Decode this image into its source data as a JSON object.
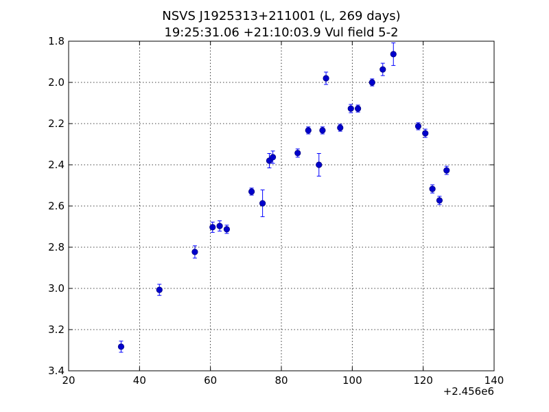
{
  "chart_data": {
    "type": "scatter",
    "title_line1": "NSVS J1925313+211001 (L, 269 days)",
    "title_line2": "19:25:31.06 +21:10:03.9 Vul field 5-2",
    "x_offset_label": "+2.456e6",
    "xlim": [
      20,
      140
    ],
    "ylim": [
      1.8,
      3.4
    ],
    "y_inverted": true,
    "x_ticks": [
      20,
      40,
      60,
      80,
      100,
      120,
      140
    ],
    "y_ticks": [
      1.8,
      2.0,
      2.2,
      2.4,
      2.6,
      2.8,
      3.0,
      3.2,
      3.4
    ],
    "grid": true,
    "marker_color": "#0000cc",
    "points": [
      {
        "x": 34.8,
        "y": 3.283,
        "err": 0.027
      },
      {
        "x": 45.6,
        "y": 3.007,
        "err": 0.027
      },
      {
        "x": 55.6,
        "y": 2.823,
        "err": 0.03
      },
      {
        "x": 60.6,
        "y": 2.703,
        "err": 0.025
      },
      {
        "x": 62.6,
        "y": 2.697,
        "err": 0.025
      },
      {
        "x": 64.6,
        "y": 2.713,
        "err": 0.02
      },
      {
        "x": 71.6,
        "y": 2.53,
        "err": 0.017
      },
      {
        "x": 74.7,
        "y": 2.587,
        "err": 0.065
      },
      {
        "x": 76.6,
        "y": 2.38,
        "err": 0.035
      },
      {
        "x": 77.6,
        "y": 2.363,
        "err": 0.03
      },
      {
        "x": 84.6,
        "y": 2.343,
        "err": 0.02
      },
      {
        "x": 87.6,
        "y": 2.233,
        "err": 0.017
      },
      {
        "x": 90.6,
        "y": 2.4,
        "err": 0.055
      },
      {
        "x": 91.6,
        "y": 2.233,
        "err": 0.017
      },
      {
        "x": 92.6,
        "y": 1.98,
        "err": 0.03
      },
      {
        "x": 96.6,
        "y": 2.22,
        "err": 0.017
      },
      {
        "x": 99.6,
        "y": 2.127,
        "err": 0.02
      },
      {
        "x": 101.6,
        "y": 2.127,
        "err": 0.017
      },
      {
        "x": 105.6,
        "y": 2.0,
        "err": 0.017
      },
      {
        "x": 108.6,
        "y": 1.937,
        "err": 0.03
      },
      {
        "x": 111.6,
        "y": 1.863,
        "err": 0.055
      },
      {
        "x": 118.6,
        "y": 2.213,
        "err": 0.017
      },
      {
        "x": 120.6,
        "y": 2.247,
        "err": 0.02
      },
      {
        "x": 122.6,
        "y": 2.517,
        "err": 0.02
      },
      {
        "x": 124.6,
        "y": 2.573,
        "err": 0.02
      },
      {
        "x": 126.6,
        "y": 2.427,
        "err": 0.02
      }
    ]
  }
}
